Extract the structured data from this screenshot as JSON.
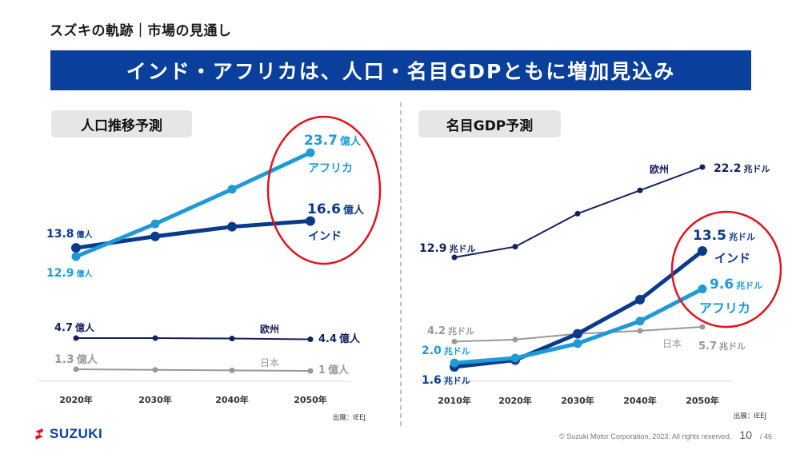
{
  "header": {
    "section_title": "スズキの軌跡｜市場の見通し",
    "banner_title": "インド・アフリカは、人口・名目GDPともに増加見込み"
  },
  "colors": {
    "banner": "#0a3f9c",
    "india": "#0a3a8c",
    "africa": "#1e9ad6",
    "europe": "#14215e",
    "japan": "#999999",
    "highlight_circle": "#e0141e"
  },
  "chart_data": [
    {
      "type": "line",
      "title": "人口推移予測",
      "unit": "億人",
      "categories": [
        "2020年",
        "2030年",
        "2040年",
        "2050年"
      ],
      "series": [
        {
          "name": "インド",
          "values": [
            13.8,
            15.0,
            16.0,
            16.6
          ],
          "labels": {
            "start": "13.8 億人",
            "end": "16.6 億人",
            "name": "インド"
          }
        },
        {
          "name": "アフリカ",
          "values": [
            12.9,
            16.3,
            19.9,
            23.7
          ],
          "labels": {
            "start": "12.9 億人",
            "end": "23.7 億人",
            "name": "アフリカ"
          }
        },
        {
          "name": "欧州",
          "values": [
            4.7,
            4.7,
            4.6,
            4.4
          ],
          "labels": {
            "start": "4.7 億人",
            "end": "4.4億人",
            "name": "欧州"
          }
        },
        {
          "name": "日本",
          "values": [
            1.3,
            1.2,
            1.1,
            1.0
          ],
          "labels": {
            "start": "1.3 億人",
            "end": "1億人",
            "name": "日本"
          }
        }
      ],
      "source": "出展：IEEJ",
      "grid": false
    },
    {
      "type": "line",
      "title": "名目GDP予測",
      "unit": "兆ドル",
      "categories": [
        "2010年",
        "2020年",
        "2030年",
        "2040年",
        "2050年"
      ],
      "series": [
        {
          "name": "欧州",
          "values": [
            12.9,
            14.0,
            17.4,
            19.8,
            22.2
          ],
          "labels": {
            "start": "12.9 兆ドル",
            "end": "22.2 兆ドル",
            "name": "欧州"
          }
        },
        {
          "name": "インド",
          "values": [
            1.6,
            2.3,
            5.0,
            8.5,
            13.5
          ],
          "labels": {
            "start": "1.6 兆ドル",
            "end": "13.5 兆ドル",
            "name": "インド"
          }
        },
        {
          "name": "アフリカ",
          "values": [
            2.0,
            2.5,
            4.0,
            6.3,
            9.6
          ],
          "labels": {
            "start": "2.0 兆ドル",
            "end": "9.6 兆ドル",
            "name": "アフリカ"
          }
        },
        {
          "name": "日本",
          "values": [
            4.2,
            4.4,
            5.0,
            5.3,
            5.7
          ],
          "labels": {
            "start": "4.2 兆ドル",
            "end": "5.7 兆ドル",
            "name": "日本"
          }
        }
      ],
      "source": "出展：IEEJ",
      "grid": false
    }
  ],
  "footer": {
    "logo_text": "SUZUKI",
    "copyright": "© Suzuki Motor Corporation, 2023. All rights reserved.",
    "page": "10",
    "total": "/ 46"
  }
}
